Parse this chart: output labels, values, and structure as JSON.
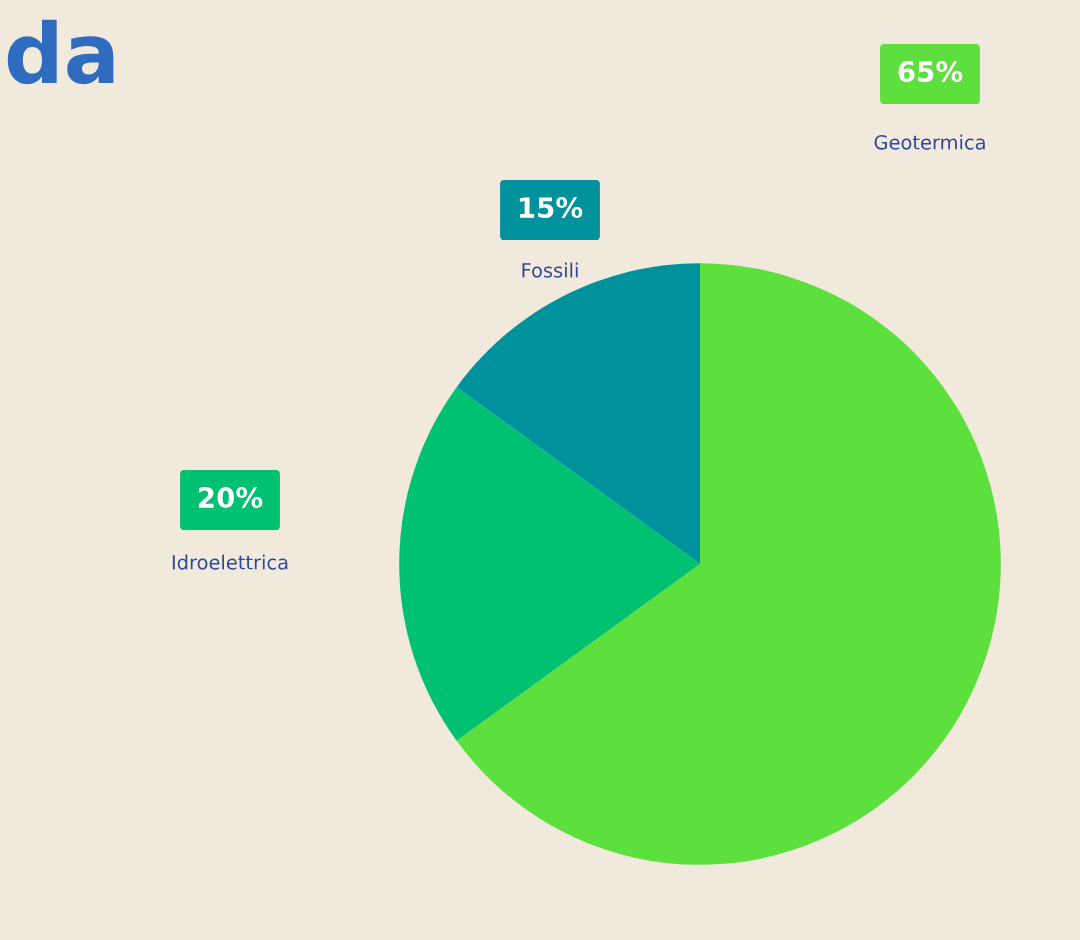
{
  "chart_data": {
    "type": "pie",
    "title": "da",
    "categories": [
      "Geotermica",
      "Idroelettrica",
      "Fossili"
    ],
    "values": [
      65,
      20,
      15
    ],
    "colors": [
      "#5ddf3e",
      "#00c172",
      "#00929c"
    ],
    "value_labels": [
      "65%",
      "20%",
      "15%"
    ]
  }
}
